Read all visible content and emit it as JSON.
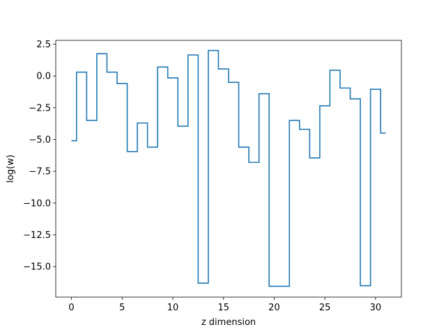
{
  "chart_data": {
    "type": "line",
    "drawstyle": "steps-mid",
    "title": "",
    "xlabel": "z dimension",
    "ylabel": "log(w)",
    "xlim": [
      -1.55,
      32.55
    ],
    "ylim": [
      -17.4,
      2.8
    ],
    "grid": false,
    "line_color": "#1f77b4",
    "x_ticks": [
      0,
      5,
      10,
      15,
      20,
      25,
      30
    ],
    "x_tick_labels": [
      "0",
      "5",
      "10",
      "15",
      "20",
      "25",
      "30"
    ],
    "y_ticks": [
      2.5,
      0.0,
      -2.5,
      -5.0,
      -7.5,
      -10.0,
      -12.5,
      -15.0
    ],
    "y_tick_labels": [
      "2.5",
      "0.0",
      "−2.5",
      "−5.0",
      "−7.5",
      "−10.0",
      "−12.5",
      "−15.0"
    ],
    "x": [
      0,
      1,
      2,
      3,
      4,
      5,
      6,
      7,
      8,
      9,
      10,
      11,
      12,
      13,
      14,
      15,
      16,
      17,
      18,
      19,
      20,
      21,
      22,
      23,
      24,
      25,
      26,
      27,
      28,
      29,
      30,
      31
    ],
    "values": [
      -5.1,
      0.3,
      -3.5,
      1.75,
      0.3,
      -0.6,
      -5.95,
      -3.7,
      -5.6,
      0.7,
      -0.15,
      -3.95,
      1.65,
      -16.3,
      2.0,
      0.55,
      -0.5,
      -5.6,
      -6.8,
      -1.4,
      -16.55,
      -16.55,
      -3.5,
      -4.2,
      -6.45,
      -2.35,
      0.45,
      -0.95,
      -1.8,
      -16.5,
      -1.05,
      -4.5
    ]
  }
}
